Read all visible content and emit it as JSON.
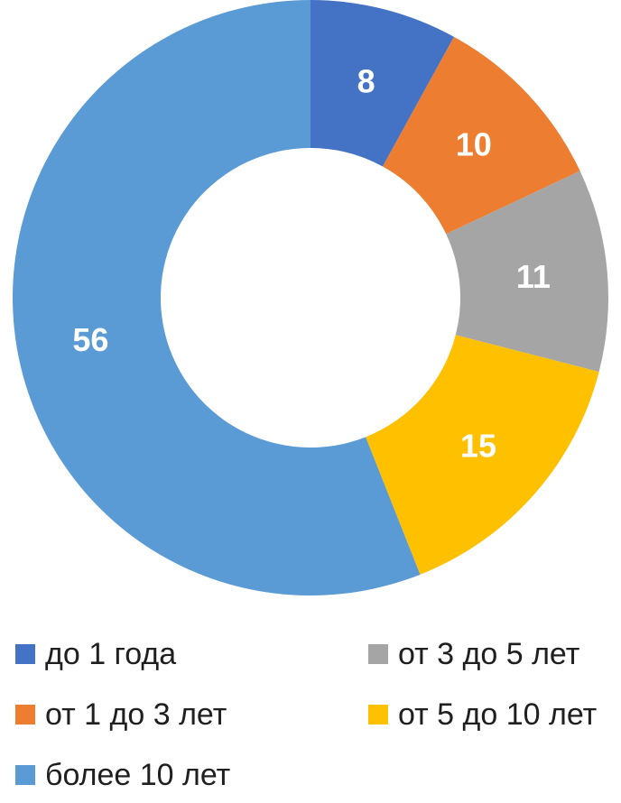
{
  "chart_data": {
    "type": "pie",
    "subtype": "donut",
    "categories": [
      "до 1 года",
      "от 1 до 3 лет",
      "от 3 до 5 лет",
      "от 5 до 10 лет",
      "более 10 лет"
    ],
    "values": [
      8,
      10,
      11,
      15,
      56
    ],
    "colors": [
      "#4472C4",
      "#ED7D31",
      "#A5A5A5",
      "#FFC000",
      "#5B9BD5"
    ],
    "title": "",
    "start_angle_deg": 0,
    "direction": "clockwise",
    "hole_ratio": 0.5,
    "data_label_color": "#FFFFFF",
    "legend_position": "bottom"
  },
  "legend": {
    "text_color": "#1F1F1F",
    "items": [
      {
        "label": "до 1 года",
        "color": "#4472C4"
      },
      {
        "label": "от 3 до 5 лет",
        "color": "#A5A5A5"
      },
      {
        "label": "от 1 до 3 лет",
        "color": "#ED7D31"
      },
      {
        "label": "от 5 до 10 лет",
        "color": "#FFC000"
      },
      {
        "label": "более 10 лет",
        "color": "#5B9BD5"
      }
    ]
  }
}
